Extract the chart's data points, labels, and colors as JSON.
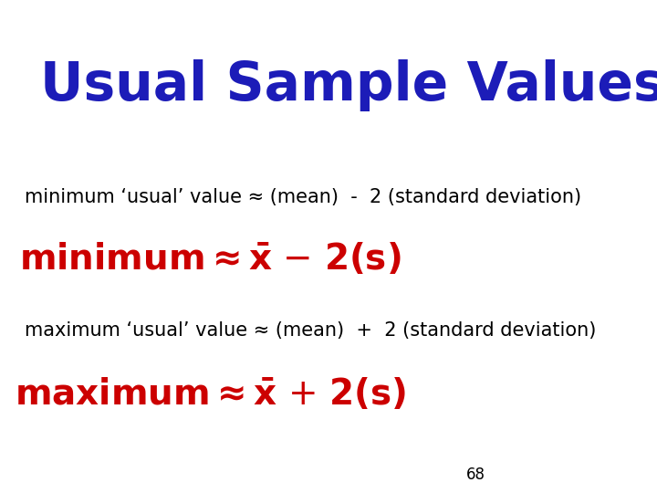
{
  "title": "Usual Sample Values",
  "title_color": "#1C1CB8",
  "title_fontsize": 42,
  "bg_color": "#FFFFFF",
  "line1_text": "minimum ‘usual’ value ≈ (mean)  -  2 (standard deviation)",
  "line1_color": "#000000",
  "line1_fontsize": 15,
  "line2_color": "#CC0000",
  "line2_fontsize": 28,
  "line3_text": "maximum ‘usual’ value ≈ (mean)  +  2 (standard deviation)",
  "line3_color": "#000000",
  "line3_fontsize": 15,
  "line4_color": "#CC0000",
  "line4_fontsize": 28,
  "page_number": "68",
  "page_number_color": "#000000",
  "page_number_fontsize": 12
}
